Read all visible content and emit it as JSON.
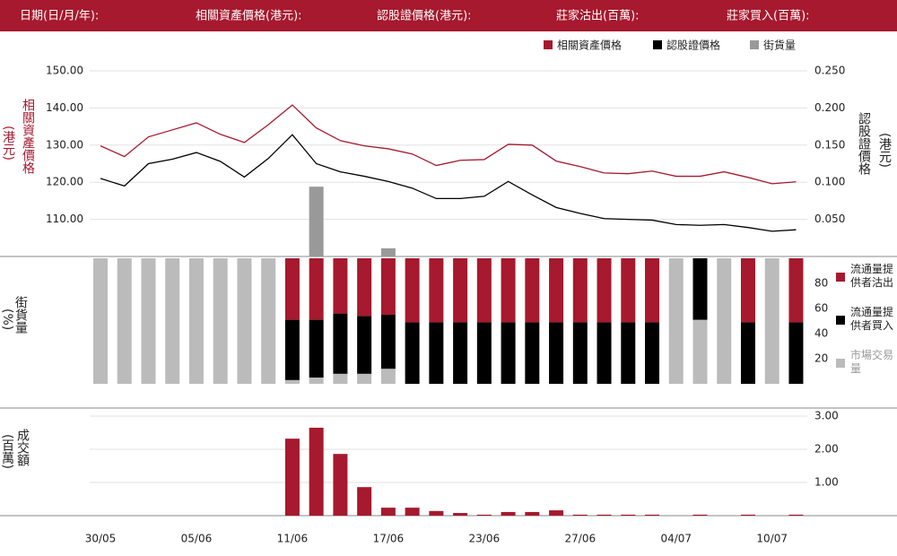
{
  "header": {
    "fields": [
      "日期(日/月/年):",
      "相關資產價格(港元):",
      "認股證價格(港元):",
      "莊家沽出(百萬):",
      "莊家買入(百萬):"
    ]
  },
  "chart_data": [
    {
      "type": "line",
      "ylabel": "相關資產價格",
      "yunit": "(港元)",
      "y2label": "認股證價格",
      "y2unit": "(港元)",
      "ylim": [
        100,
        152
      ],
      "yticks": [
        {
          "value": 110,
          "label": "110.00"
        },
        {
          "value": 120,
          "label": "120.00"
        },
        {
          "value": 130,
          "label": "130.00"
        },
        {
          "value": 140,
          "label": "140.00"
        },
        {
          "value": 150,
          "label": "150.00"
        }
      ],
      "y2lim": [
        0,
        0.26
      ],
      "y2ticks": [
        {
          "value": 0.05,
          "label": "0.050"
        },
        {
          "value": 0.1,
          "label": "0.100"
        },
        {
          "value": 0.15,
          "label": "0.150"
        },
        {
          "value": 0.2,
          "label": "0.200"
        },
        {
          "value": 0.25,
          "label": "0.250"
        }
      ],
      "grid": true,
      "series": [
        {
          "name": "相關資產價格",
          "color": "#a6192e",
          "values": [
            129.8,
            126.9,
            132.2,
            134.1,
            136.0,
            132.9,
            130.7,
            135.5,
            140.8,
            134.6,
            131.2,
            129.8,
            129.0,
            127.6,
            124.5,
            125.9,
            126.1,
            130.2,
            130.0,
            125.7,
            124.2,
            122.5,
            122.3,
            123.0,
            121.6,
            121.6,
            122.8,
            121.3,
            119.6,
            120.1
          ]
        },
        {
          "name": "認股證價格",
          "color": "#000000",
          "axis": "y2",
          "values": [
            0.105,
            0.095,
            0.125,
            0.131,
            0.14,
            0.128,
            0.107,
            0.132,
            0.164,
            0.125,
            0.114,
            0.108,
            0.101,
            0.092,
            0.078,
            0.078,
            0.081,
            0.101,
            0.083,
            0.066,
            0.058,
            0.051,
            0.05,
            0.049,
            0.043,
            0.042,
            0.043,
            0.039,
            0.034,
            0.036
          ]
        },
        {
          "name": "街貨量",
          "color": "#999999",
          "type": "bar",
          "values": [
            null,
            null,
            null,
            null,
            null,
            null,
            null,
            null,
            null,
            118.8,
            null,
            null,
            102.2,
            null,
            null,
            null,
            null,
            null,
            null,
            null,
            null,
            null,
            null,
            null,
            null,
            null,
            null,
            null,
            null,
            null
          ]
        }
      ]
    },
    {
      "type": "stacked_bar",
      "ylabel": "街貨量",
      "yunit": "(%)",
      "ylim": [
        0,
        100
      ],
      "yticks": [
        20,
        40,
        60,
        80
      ],
      "series": [
        {
          "name": "市場交易量",
          "color": "#bbbbbb",
          "values": [
            100,
            100,
            100,
            100,
            100,
            100,
            100,
            100,
            3,
            5,
            8,
            8,
            12,
            0,
            0,
            0,
            0,
            0,
            0,
            0,
            0,
            0,
            0,
            0,
            100,
            51,
            100,
            0,
            100,
            0
          ]
        },
        {
          "name": "流通量提供者買入",
          "color": "#000000",
          "values": [
            0,
            0,
            0,
            0,
            0,
            0,
            0,
            0,
            48,
            46,
            48,
            46,
            43,
            49,
            49,
            49,
            49,
            49,
            49,
            49,
            49,
            49,
            49,
            49,
            0,
            49,
            0,
            49,
            0,
            49
          ]
        },
        {
          "name": "流通量提供者沽出",
          "color": "#a6192e",
          "values": [
            0,
            0,
            0,
            0,
            0,
            0,
            0,
            0,
            49,
            49,
            44,
            46,
            45,
            51,
            51,
            51,
            51,
            51,
            51,
            51,
            51,
            51,
            51,
            51,
            0,
            0,
            0,
            51,
            0,
            51
          ]
        }
      ]
    },
    {
      "type": "bar",
      "ylabel": "成交額",
      "yunit": "(百萬)",
      "ylim": [
        0,
        3.25
      ],
      "yticks": [
        {
          "value": 1,
          "label": "1.00"
        },
        {
          "value": 2,
          "label": "2.00"
        },
        {
          "value": 3,
          "label": "3.00"
        }
      ],
      "color": "#a6192e",
      "categories": [
        "30/05",
        null,
        null,
        null,
        "05/06",
        null,
        null,
        null,
        "11/06",
        null,
        null,
        null,
        "17/06",
        null,
        null,
        null,
        "23/06",
        null,
        null,
        null,
        "27/06",
        null,
        null,
        null,
        "04/07",
        null,
        null,
        null,
        "10/07",
        null
      ],
      "values": [
        0,
        0,
        0,
        0,
        0,
        0,
        0,
        0,
        2.32,
        2.65,
        1.86,
        0.86,
        0.24,
        0.24,
        0.14,
        0.08,
        0.03,
        0.11,
        0.11,
        0.16,
        0.03,
        0.03,
        0.03,
        0.03,
        0,
        0.03,
        0,
        0.03,
        0,
        0.03
      ]
    }
  ]
}
